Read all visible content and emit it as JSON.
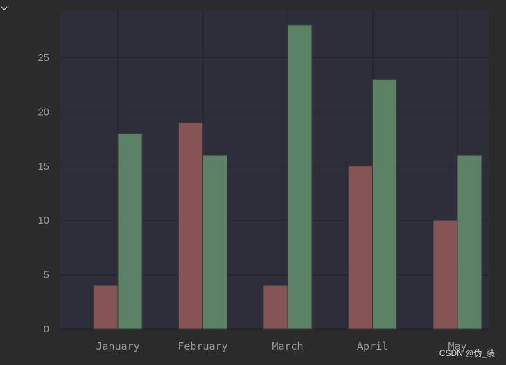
{
  "watermark": "CSDN @伪_装",
  "icons": {
    "collapse": "chevron-down-icon"
  },
  "colors": {
    "page_background": "#2b2b2b",
    "plot_background": "#2e2e3a",
    "grid": "#23232b",
    "series_1": "#8c5656",
    "series_2": "#5f8768",
    "text": "#9a9a9a"
  },
  "chart_data": {
    "type": "bar",
    "title": "",
    "xlabel": "",
    "ylabel": "",
    "categories": [
      "January",
      "February",
      "March",
      "April",
      "May"
    ],
    "series": [
      {
        "values": [
          4,
          19,
          4,
          15,
          10
        ]
      },
      {
        "values": [
          18,
          16,
          28,
          23,
          16
        ]
      }
    ],
    "ylim": [
      0,
      29.4
    ],
    "yticks": [
      0,
      5,
      10,
      15,
      20,
      25
    ],
    "grid": true,
    "legend": "none"
  }
}
